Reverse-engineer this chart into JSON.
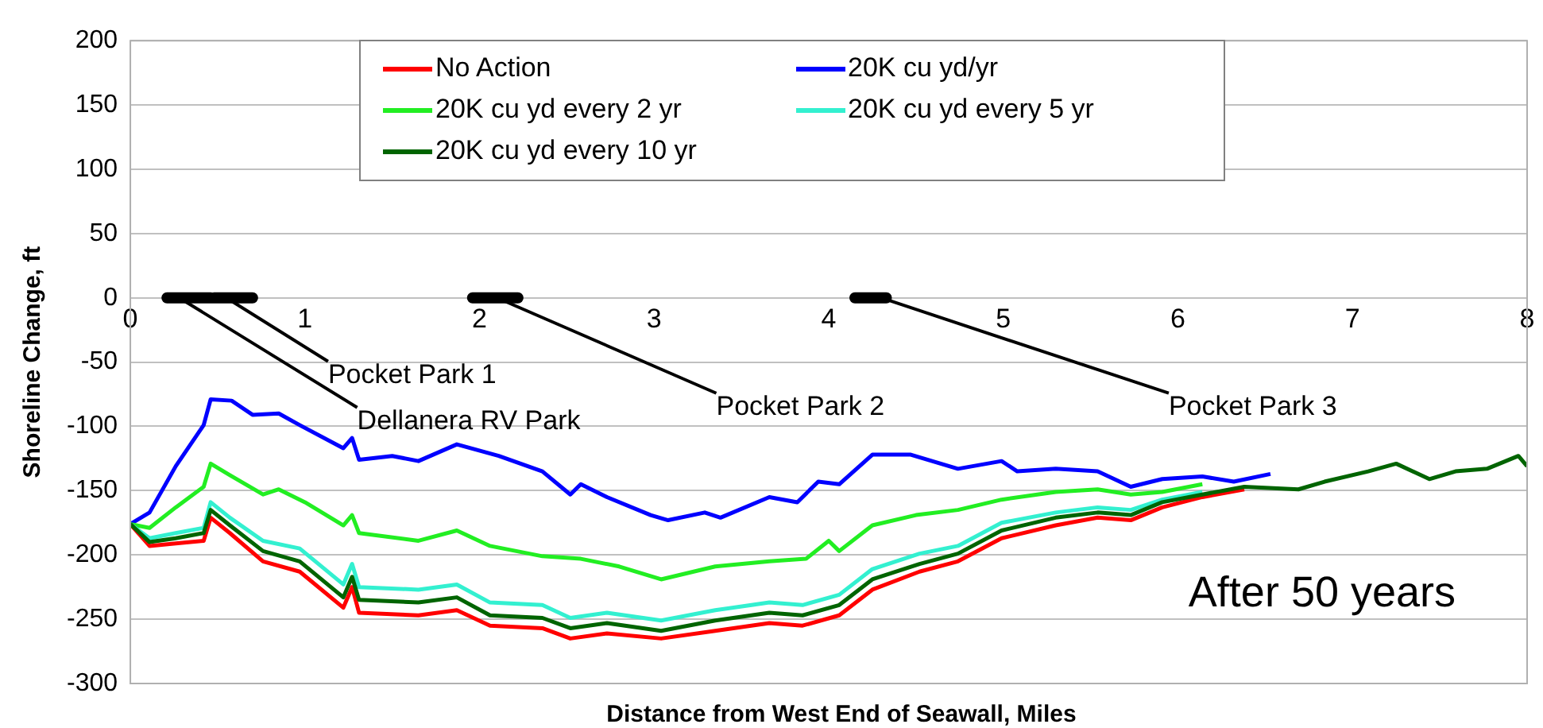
{
  "chart_data": {
    "type": "line",
    "xlabel": "Distance from West End of Seawall, Miles",
    "ylabel": "Shoreline Change, ft",
    "xlim": [
      0,
      8
    ],
    "xticks": [
      0,
      1,
      2,
      3,
      4,
      5,
      6,
      7,
      8
    ],
    "ylim": [
      -300,
      200
    ],
    "yticks": [
      -300,
      -250,
      -200,
      -150,
      -100,
      -50,
      0,
      50,
      100,
      150,
      200
    ],
    "grid": "y",
    "legend": "top",
    "marker": "none",
    "line_style": "solid",
    "series": [
      {
        "name": "No Action",
        "color": "#ff0000",
        "x": [
          0,
          0.11,
          0.26,
          0.42,
          0.46,
          0.57,
          0.76,
          0.97,
          1.22,
          1.27,
          1.31,
          1.65,
          1.87,
          2.06,
          2.36,
          2.52,
          2.73,
          3.04,
          3.35,
          3.66,
          3.85,
          4.06,
          4.25,
          4.52,
          4.74,
          4.99,
          5.3,
          5.54,
          5.73,
          5.91,
          6.14,
          6.38
        ],
        "values": [
          -176,
          -193,
          -191,
          -189,
          -171,
          -183,
          -205,
          -213,
          -241,
          -225,
          -245,
          -247,
          -243,
          -255,
          -257,
          -265,
          -261,
          -265,
          -259,
          -253,
          -255,
          -247,
          -227,
          -213,
          -205,
          -187,
          -177,
          -171,
          -173,
          -163,
          -155,
          -149
        ]
      },
      {
        "name": "20K cu yd/yr",
        "color": "#0000ff",
        "x": [
          0,
          0.11,
          0.26,
          0.42,
          0.46,
          0.58,
          0.7,
          0.85,
          0.97,
          1.22,
          1.27,
          1.31,
          1.5,
          1.65,
          1.87,
          2.11,
          2.36,
          2.52,
          2.58,
          2.73,
          2.98,
          3.08,
          3.29,
          3.38,
          3.66,
          3.82,
          3.94,
          4.06,
          4.25,
          4.47,
          4.74,
          4.99,
          5.08,
          5.3,
          5.54,
          5.73,
          5.91,
          6.14,
          6.32,
          6.53
        ],
        "values": [
          -176,
          -167,
          -131,
          -99,
          -79,
          -80,
          -91,
          -90,
          -99,
          -117,
          -109,
          -126,
          -123,
          -127,
          -114,
          -123,
          -135,
          -153,
          -145,
          -155,
          -169,
          -173,
          -167,
          -171,
          -155,
          -159,
          -143,
          -145,
          -122,
          -122,
          -133,
          -127,
          -135,
          -133,
          -135,
          -147,
          -141,
          -139,
          -143,
          -137
        ]
      },
      {
        "name": "20K cu yd every 2 yr",
        "color": "#22ee22",
        "x": [
          0,
          0.11,
          0.26,
          0.42,
          0.46,
          0.57,
          0.76,
          0.85,
          1.0,
          1.22,
          1.27,
          1.31,
          1.65,
          1.87,
          2.06,
          2.36,
          2.58,
          2.8,
          3.04,
          3.35,
          3.66,
          3.87,
          4.0,
          4.06,
          4.25,
          4.5,
          4.74,
          4.99,
          5.3,
          5.54,
          5.73,
          5.91,
          6.14
        ],
        "values": [
          -176,
          -179,
          -163,
          -147,
          -129,
          -138,
          -153,
          -149,
          -159,
          -177,
          -169,
          -183,
          -189,
          -181,
          -193,
          -201,
          -203,
          -209,
          -219,
          -209,
          -205,
          -203,
          -189,
          -197,
          -177,
          -169,
          -165,
          -157,
          -151,
          -149,
          -153,
          -151,
          -145
        ]
      },
      {
        "name": "20K cu yd every 5 yr",
        "color": "#33f0d0",
        "x": [
          0,
          0.11,
          0.26,
          0.42,
          0.46,
          0.57,
          0.76,
          0.97,
          1.22,
          1.27,
          1.31,
          1.65,
          1.87,
          2.06,
          2.36,
          2.52,
          2.73,
          3.04,
          3.35,
          3.66,
          3.85,
          4.06,
          4.25,
          4.52,
          4.74,
          4.99,
          5.3,
          5.54,
          5.73,
          5.91,
          6.14
        ],
        "values": [
          -176,
          -187,
          -183,
          -179,
          -159,
          -171,
          -189,
          -195,
          -223,
          -207,
          -225,
          -227,
          -223,
          -237,
          -239,
          -249,
          -245,
          -251,
          -243,
          -237,
          -239,
          -231,
          -211,
          -199,
          -193,
          -175,
          -167,
          -163,
          -165,
          -157,
          -151
        ]
      },
      {
        "name": "20K cu yd every 10 yr",
        "color": "#006400",
        "x": [
          0,
          0.11,
          0.26,
          0.42,
          0.46,
          0.57,
          0.76,
          0.97,
          1.22,
          1.27,
          1.31,
          1.65,
          1.87,
          2.06,
          2.36,
          2.52,
          2.73,
          3.04,
          3.35,
          3.66,
          3.85,
          4.06,
          4.25,
          4.52,
          4.74,
          4.99,
          5.3,
          5.54,
          5.73,
          5.91,
          6.14,
          6.38,
          6.69,
          6.84,
          7.09,
          7.25,
          7.44,
          7.59,
          7.77,
          7.95,
          8.0
        ],
        "values": [
          -176,
          -190,
          -187,
          -183,
          -165,
          -177,
          -197,
          -205,
          -233,
          -217,
          -235,
          -237,
          -233,
          -247,
          -249,
          -257,
          -253,
          -259,
          -251,
          -245,
          -247,
          -239,
          -219,
          -207,
          -199,
          -181,
          -171,
          -167,
          -169,
          -159,
          -153,
          -147,
          -149,
          -143,
          -135,
          -129,
          -141,
          -135,
          -133,
          -123,
          -131
        ]
      },
      {
        "color": "#000000",
        "x": [
          0.21,
          0.46,
          null,
          0.48,
          0.7,
          null,
          1.96,
          2.22,
          null,
          4.15,
          4.33
        ],
        "values": [
          0,
          0,
          null,
          0,
          0,
          null,
          0,
          0,
          null,
          0,
          0
        ]
      }
    ],
    "annotations": [
      {
        "text": "Dellanera RV Park",
        "x": 0.28,
        "y": 0
      },
      {
        "text": "Pocket Park 1",
        "x": 0.55,
        "y": 0
      },
      {
        "text": "Pocket Park 2",
        "x": 2.1,
        "y": 0
      },
      {
        "text": "Pocket Park 3",
        "x": 4.3,
        "y": 0
      },
      "After 50 years"
    ]
  }
}
